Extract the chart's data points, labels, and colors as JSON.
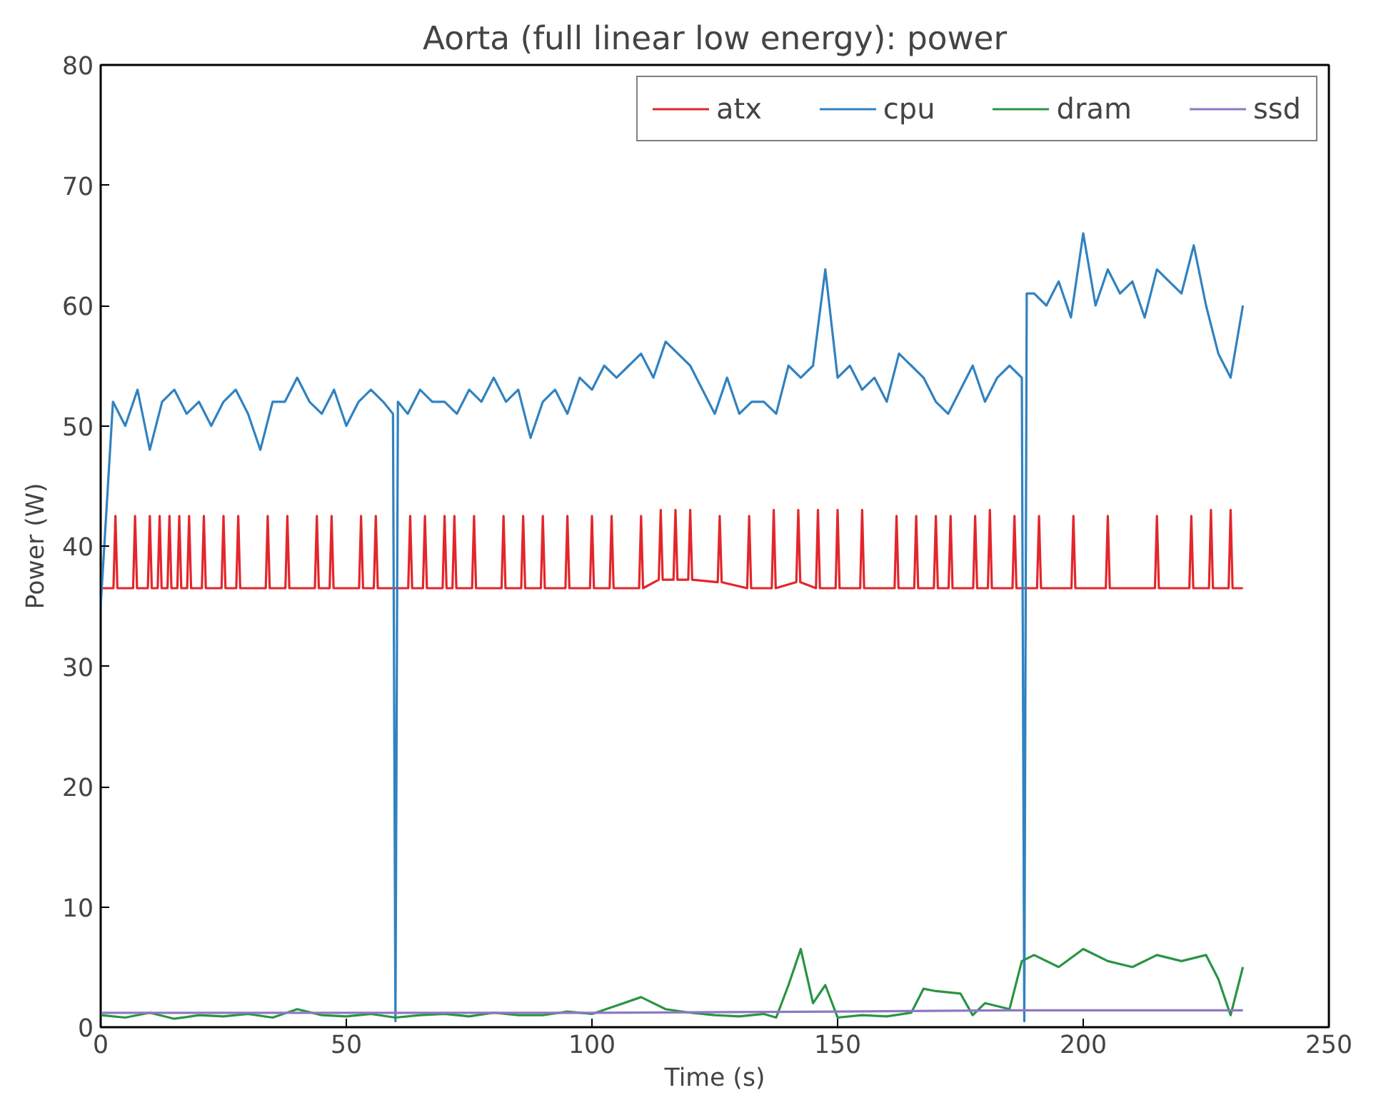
{
  "chart_data": {
    "type": "line",
    "title": "Aorta (full linear low energy): power",
    "xlabel": "Time (s)",
    "ylabel": "Power (W)",
    "xlim": [
      0,
      250
    ],
    "ylim": [
      0,
      80
    ],
    "xticks": [
      0,
      50,
      100,
      150,
      200,
      250
    ],
    "yticks": [
      0,
      10,
      20,
      30,
      40,
      50,
      60,
      70,
      80
    ],
    "grid": false,
    "legend": "top right",
    "line_style": "solid",
    "marker": "none",
    "series": [
      {
        "name": "atx",
        "color": "#e3262b",
        "x": [
          0,
          2.6,
          3,
          3.4,
          6.6,
          7,
          7.4,
          9.6,
          10,
          10.4,
          11.6,
          12,
          12.4,
          13.6,
          14,
          14.4,
          15.6,
          16,
          16.4,
          17.6,
          18,
          18.4,
          20.6,
          21,
          21.4,
          24.6,
          25,
          25.4,
          27.6,
          28,
          28.4,
          33.6,
          34,
          34.4,
          37.6,
          38,
          38.4,
          43.6,
          44,
          44.4,
          46.6,
          47,
          47.4,
          52.6,
          53,
          53.4,
          55.6,
          56,
          56.4,
          62.6,
          63,
          63.4,
          65.6,
          66,
          66.4,
          69.6,
          70,
          70.4,
          71.6,
          72,
          72.4,
          75.6,
          76,
          76.4,
          81.6,
          82,
          82.4,
          85.6,
          86,
          86.4,
          89.6,
          90,
          90.4,
          94.6,
          95,
          95.4,
          99.6,
          100,
          100.4,
          103.6,
          104,
          104.4,
          109.6,
          110,
          110.4,
          113.6,
          114,
          114.4,
          116.6,
          117,
          117.4,
          119.6,
          120,
          120.4,
          125.6,
          126,
          126.4,
          131.6,
          132,
          132.4,
          136.6,
          137,
          137.4,
          141.6,
          142,
          142.4,
          145.6,
          146,
          146.4,
          149.6,
          150,
          150.4,
          154.6,
          155,
          155.4,
          161.6,
          162,
          162.4,
          165.6,
          166,
          166.4,
          169.6,
          170,
          170.4,
          172.6,
          173,
          173.4,
          177.6,
          178,
          178.4,
          180.6,
          181,
          181.4,
          185.6,
          186,
          186.4,
          190.6,
          191,
          191.4,
          197.6,
          198,
          198.4,
          204.6,
          205,
          205.4,
          214.6,
          215,
          215.4,
          221.6,
          222,
          222.4,
          225.6,
          226,
          226.4,
          229.6,
          230,
          230.4,
          232.5
        ],
        "values": [
          36.5,
          36.5,
          42.5,
          36.5,
          36.5,
          42.5,
          36.5,
          36.5,
          42.5,
          36.5,
          36.5,
          42.5,
          36.5,
          36.5,
          42.5,
          36.5,
          36.5,
          42.5,
          36.5,
          36.5,
          42.5,
          36.5,
          36.5,
          42.5,
          36.5,
          36.5,
          42.5,
          36.5,
          36.5,
          42.5,
          36.5,
          36.5,
          42.5,
          36.5,
          36.5,
          42.5,
          36.5,
          36.5,
          42.5,
          36.5,
          36.5,
          42.5,
          36.5,
          36.5,
          42.5,
          36.5,
          36.5,
          42.5,
          36.5,
          36.5,
          42.5,
          36.5,
          36.5,
          42.5,
          36.5,
          36.5,
          42.5,
          36.5,
          36.5,
          42.5,
          36.5,
          36.5,
          42.5,
          36.5,
          36.5,
          42.5,
          36.5,
          36.5,
          42.5,
          36.5,
          36.5,
          42.5,
          36.5,
          36.5,
          42.5,
          36.5,
          36.5,
          42.5,
          36.5,
          36.5,
          42.5,
          36.5,
          36.5,
          42.5,
          36.5,
          37.2,
          43,
          37.2,
          37.2,
          43,
          37.2,
          37.2,
          43,
          37.2,
          37,
          42.5,
          37,
          36.5,
          42.5,
          36.5,
          36.5,
          43,
          36.5,
          37,
          43,
          37,
          36.5,
          43,
          36.5,
          36.5,
          43,
          36.5,
          36.5,
          43,
          36.5,
          36.5,
          42.5,
          36.5,
          36.5,
          42.5,
          36.5,
          36.5,
          42.5,
          36.5,
          36.5,
          42.5,
          36.5,
          36.5,
          42.5,
          36.5,
          36.5,
          43,
          36.5,
          36.5,
          42.5,
          36.5,
          36.5,
          42.5,
          36.5,
          36.5,
          42.5,
          36.5,
          36.5,
          42.5,
          36.5,
          36.5,
          42.5,
          36.5,
          36.5,
          42.5,
          36.5,
          36.5,
          43,
          36.5,
          36.5,
          43,
          36.5,
          36.5
        ]
      },
      {
        "name": "cpu",
        "color": "#3182c0",
        "x": [
          0,
          2.5,
          5,
          7.5,
          10,
          12.5,
          15,
          17.5,
          20,
          22.5,
          25,
          27.5,
          30,
          32.5,
          35,
          37.5,
          40,
          42.5,
          45,
          47.5,
          50,
          52.5,
          55,
          57.5,
          59.5,
          60,
          60.5,
          62.5,
          65,
          67.5,
          70,
          72.5,
          75,
          77.5,
          80,
          82.5,
          85,
          87.5,
          90,
          92.5,
          95,
          97.5,
          100,
          102.5,
          105,
          107.5,
          110,
          112.5,
          115,
          117.5,
          120,
          122.5,
          125,
          127.5,
          130,
          132.5,
          135,
          137.5,
          140,
          142.5,
          145,
          147.5,
          150,
          152.5,
          155,
          157.5,
          160,
          162.5,
          165,
          167.5,
          170,
          172.5,
          175,
          177.5,
          180,
          182.5,
          185,
          187.5,
          188,
          188.5,
          190,
          192.5,
          195,
          197.5,
          200,
          202.5,
          205,
          207.5,
          210,
          212.5,
          215,
          217.5,
          220,
          222.5,
          225,
          227.5,
          230,
          232.5
        ],
        "values": [
          35,
          52,
          50,
          53,
          48,
          52,
          53,
          51,
          52,
          50,
          52,
          53,
          51,
          48,
          52,
          52,
          54,
          52,
          51,
          53,
          50,
          52,
          53,
          52,
          51,
          0.5,
          52,
          51,
          53,
          52,
          52,
          51,
          53,
          52,
          54,
          52,
          53,
          49,
          52,
          53,
          51,
          54,
          53,
          55,
          54,
          55,
          56,
          54,
          57,
          56,
          55,
          53,
          51,
          54,
          51,
          52,
          52,
          51,
          55,
          54,
          55,
          63,
          54,
          55,
          53,
          54,
          52,
          56,
          55,
          54,
          52,
          51,
          53,
          55,
          52,
          54,
          55,
          54,
          0.5,
          61,
          61,
          60,
          62,
          59,
          66,
          60,
          63,
          61,
          62,
          59,
          63,
          62,
          61,
          65,
          60,
          56,
          54,
          60
        ]
      },
      {
        "name": "dram",
        "color": "#2a9443",
        "x": [
          0,
          5,
          10,
          15,
          20,
          25,
          30,
          35,
          40,
          45,
          50,
          55,
          60,
          65,
          70,
          75,
          80,
          85,
          90,
          95,
          100,
          105,
          110,
          115,
          120,
          125,
          130,
          135,
          137.5,
          140,
          142.5,
          145,
          147.5,
          150,
          155,
          160,
          165,
          167.5,
          170,
          175,
          177.5,
          180,
          185,
          187.5,
          190,
          195,
          200,
          205,
          210,
          215,
          220,
          225,
          227.5,
          230,
          232.5
        ],
        "values": [
          1,
          0.8,
          1.2,
          0.7,
          1,
          0.9,
          1.1,
          0.8,
          1.5,
          1,
          0.9,
          1.1,
          0.8,
          1,
          1.1,
          0.9,
          1.2,
          1,
          1,
          1.3,
          1.1,
          1.8,
          2.5,
          1.5,
          1.2,
          1,
          0.9,
          1.1,
          0.8,
          3.5,
          6.5,
          2,
          3.5,
          0.8,
          1,
          0.9,
          1.2,
          3.2,
          3,
          2.8,
          1,
          2,
          1.5,
          5.5,
          6,
          5,
          6.5,
          5.5,
          5,
          6,
          5.5,
          6,
          4,
          1,
          5
        ]
      },
      {
        "name": "ssd",
        "color": "#8e78c3",
        "x": [
          0,
          50,
          100,
          150,
          185,
          232.5
        ],
        "values": [
          1.2,
          1.2,
          1.2,
          1.3,
          1.4,
          1.4
        ]
      }
    ]
  }
}
